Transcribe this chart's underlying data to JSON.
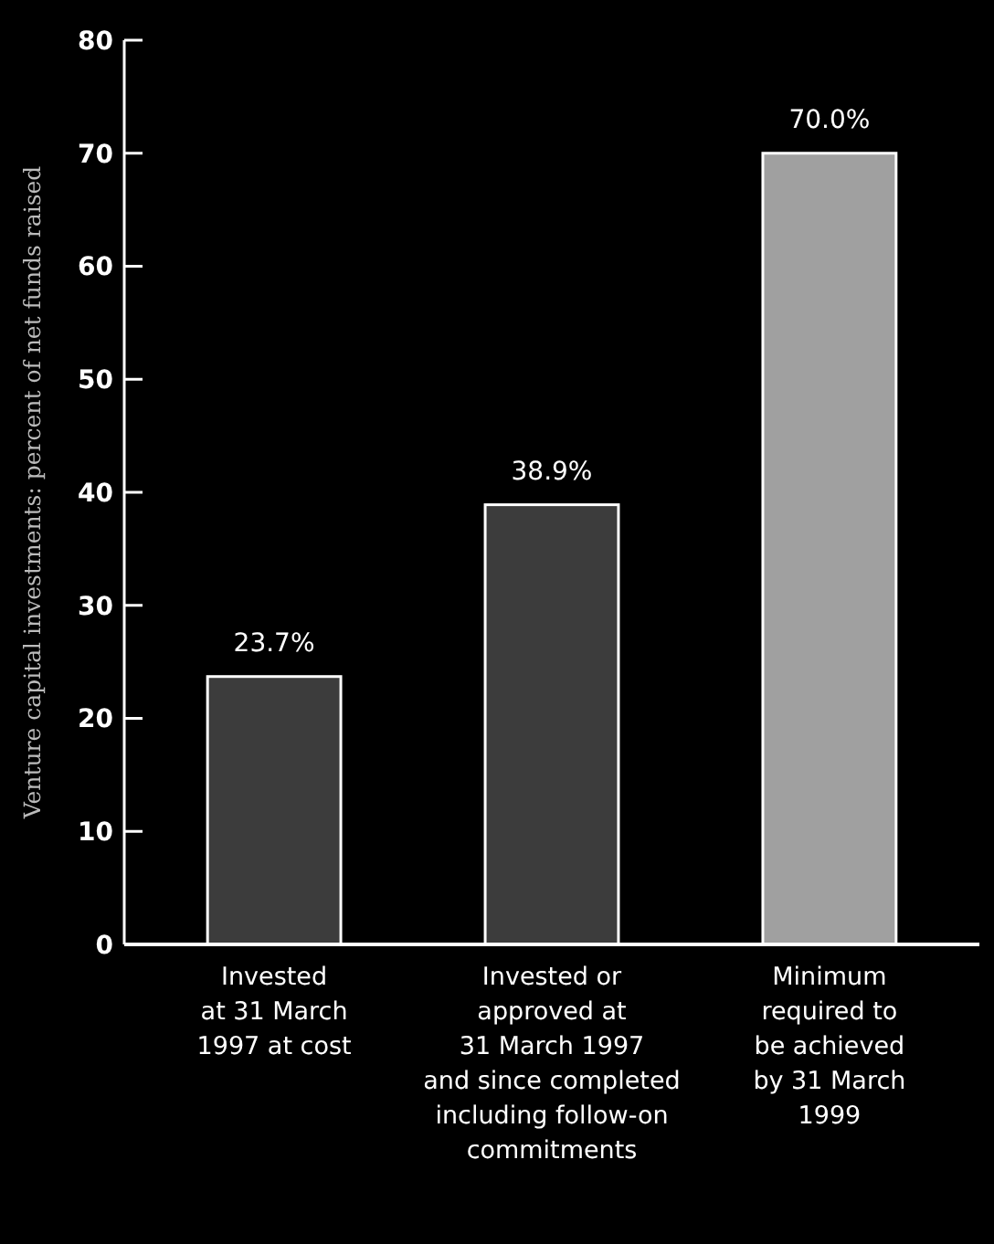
{
  "chart_data": {
    "type": "bar",
    "ylabel": "Venture capital investments: percent of net funds raised",
    "categories": [
      "Invested\nat 31 March\n1997 at cost",
      "Invested or\napproved at\n31 March 1997\nand since completed\nincluding follow-on\ncommitments",
      "Minimum\nrequired to\nbe achieved\nby 31 March\n1999"
    ],
    "values": [
      23.7,
      38.9,
      70.0
    ],
    "colors": [
      "#3c3c3c",
      "#3c3c3c",
      "#a0a0a0"
    ],
    "value_labels": [
      "23.7%",
      "38.9%",
      "70.0%"
    ],
    "ylim": [
      0,
      80
    ],
    "yticks": [
      0,
      10,
      20,
      30,
      40,
      50,
      60,
      70,
      80
    ],
    "grid": false
  }
}
